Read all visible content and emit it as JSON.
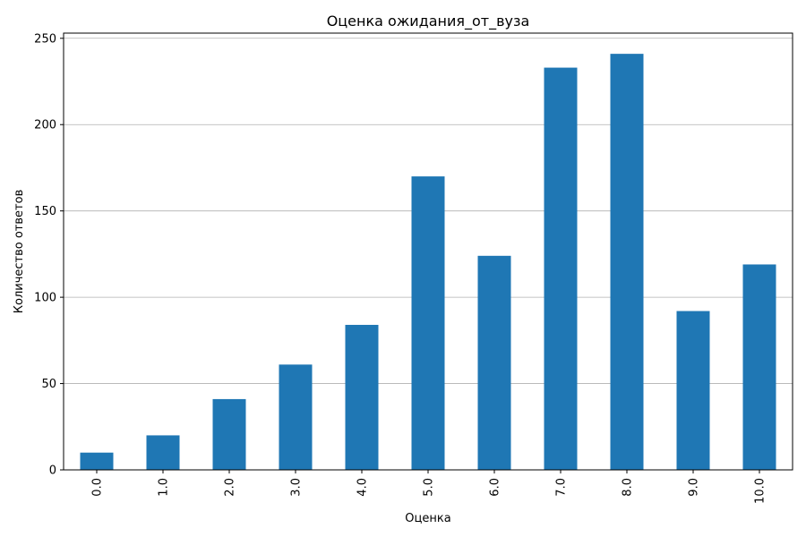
{
  "chart_data": {
    "type": "bar",
    "title": "Оценка ожидания_от_вуза",
    "xlabel": "Оценка",
    "ylabel": "Количество ответов",
    "categories": [
      "0.0",
      "1.0",
      "2.0",
      "3.0",
      "4.0",
      "5.0",
      "6.0",
      "7.0",
      "8.0",
      "9.0",
      "10.0"
    ],
    "values": [
      10,
      20,
      41,
      61,
      84,
      170,
      124,
      233,
      241,
      92,
      119
    ],
    "ylim": [
      0,
      253
    ],
    "yticks": [
      "0",
      "50",
      "100",
      "150",
      "200",
      "250"
    ],
    "grid": "horizontal",
    "bar_color": "#1f77b4",
    "grid_color": "#b0b0b0"
  }
}
